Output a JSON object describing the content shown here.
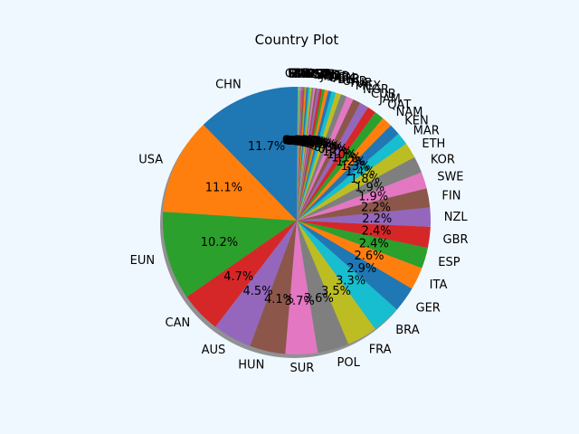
{
  "chart_data": {
    "type": "pie",
    "title": "Country Plot",
    "start_angle_deg": 90,
    "direction": "counterclockwise",
    "shadow": true,
    "categories": [
      "CHN",
      "USA",
      "EUN",
      "CAN",
      "AUS",
      "HUN",
      "SUR",
      "POL",
      "FRA",
      "BRA",
      "GER",
      "ITA",
      "ESP",
      "GBR",
      "NZL",
      "FIN",
      "SWE",
      "KOR",
      "ETH",
      "MAR",
      "KEN",
      "NAM",
      "QAT",
      "JAM",
      "CUB",
      "NGR",
      "MEX",
      "TUR",
      "UKR",
      "BLR",
      "ARG",
      "DEN",
      "SRB",
      "NOR",
      "JPN",
      "AUT",
      "BEL",
      "NED",
      "SUI",
      "CZE",
      "RSA",
      "EST",
      "GEO",
      "IRN",
      "KAZ",
      "ROU",
      "CRO",
      "SVK",
      "SLO",
      "LTU",
      "GRE"
    ],
    "values": [
      11.7,
      11.1,
      10.2,
      4.7,
      4.5,
      4.1,
      3.7,
      3.6,
      3.5,
      3.3,
      2.9,
      2.6,
      2.4,
      2.4,
      2.2,
      2.2,
      1.9,
      1.9,
      1.8,
      1.4,
      1.3,
      1.2,
      1.1,
      1.0,
      1.0,
      0.9,
      0.8,
      0.7,
      0.6,
      0.5,
      0.4,
      0.4,
      0.3,
      0.3,
      0.3,
      0.2,
      0.2,
      0.2,
      0.2,
      0.2,
      0.2,
      0.2,
      0.1,
      0.1,
      0.1,
      0.1,
      0.1,
      0.1,
      0.1,
      0.1,
      0.1
    ],
    "percent_labels": [
      "11.7%",
      "11.1%",
      "10.2%",
      "4.7%",
      "4.5%",
      "4.1%",
      "3.7%",
      "3.6%",
      "3.5%",
      "3.3%",
      "2.9%",
      "2.6%",
      "2.4%",
      "2.4%",
      "2.2%",
      "2.2%",
      "1.9%",
      "1.9%",
      "1.8%",
      "1.4%",
      "1.3%",
      "1.2%",
      "1.1%",
      "1.0%",
      "1.0%",
      "0.9%",
      "0.8%",
      "0.7%",
      "0.6%",
      "0.5%",
      "0.4%",
      "0.4%",
      "0.3%",
      "0.3%",
      "0.3%",
      "0.2%",
      "0.2%",
      "0.2%",
      "0.2%",
      "0.2%",
      "0.2%",
      "0.2%",
      "0.1%",
      "0.1%",
      "0.1%",
      "0.1%",
      "0.1%",
      "0.1%",
      "0.1%",
      "0.1%",
      "0.1%"
    ],
    "colors": [
      "#1f77b4",
      "#ff7f0e",
      "#2ca02c",
      "#d62728",
      "#9467bd",
      "#8c564b",
      "#e377c2",
      "#7f7f7f",
      "#bcbd22",
      "#17becf"
    ]
  }
}
